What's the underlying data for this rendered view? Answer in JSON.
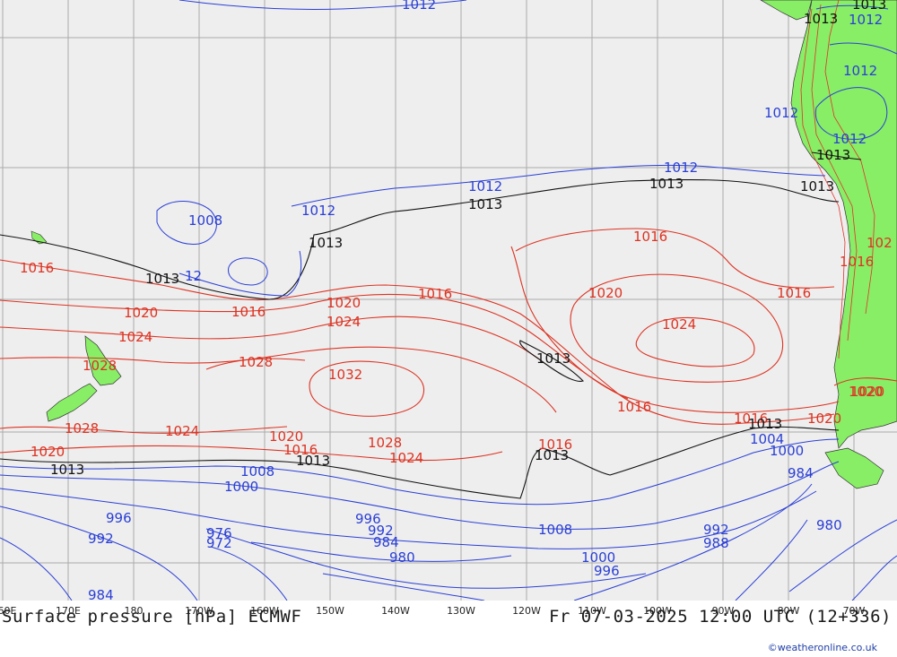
{
  "map": {
    "title_left": "Surface pressure [hPa] ECMWF",
    "title_right": "Fr 07-03-2025 12:00 UTC (12+336)",
    "credit": "©weatheronline.co.uk",
    "colors": {
      "ocean": "#eeeeee",
      "land": "#88ee66",
      "grid": "#aaaaaa",
      "isobar_high": "#dd3322",
      "isobar_low": "#2a3fd6",
      "isobar_1013": "#111111"
    },
    "longitude_labels": [
      "60E",
      "170E",
      "180",
      "170W",
      "160W",
      "150W",
      "140W",
      "130W",
      "120W",
      "110W",
      "100W",
      "90W",
      "80W",
      "70W"
    ],
    "isobar_labels": [
      {
        "text": "1012",
        "type": "low"
      },
      {
        "text": "1012",
        "type": "low"
      },
      {
        "text": "1013",
        "type": "mid"
      },
      {
        "text": "1012",
        "type": "low"
      },
      {
        "text": "1012",
        "type": "low"
      },
      {
        "text": "1013",
        "type": "mid"
      },
      {
        "text": "1012",
        "type": "low"
      },
      {
        "text": "1013",
        "type": "mid"
      },
      {
        "text": "1012",
        "type": "low"
      },
      {
        "text": "1013",
        "type": "mid"
      },
      {
        "text": "1012",
        "type": "low"
      },
      {
        "text": "1013",
        "type": "mid"
      },
      {
        "text": "1008",
        "type": "low"
      },
      {
        "text": "1012",
        "type": "low"
      },
      {
        "text": "1013",
        "type": "mid"
      },
      {
        "text": "1016",
        "type": "high"
      },
      {
        "text": "1013",
        "type": "mid"
      },
      {
        "text": "12",
        "type": "low"
      },
      {
        "text": "1016",
        "type": "high"
      },
      {
        "text": "1020",
        "type": "high"
      },
      {
        "text": "1016",
        "type": "high"
      },
      {
        "text": "1020",
        "type": "high"
      },
      {
        "text": "1024",
        "type": "high"
      },
      {
        "text": "1016",
        "type": "high"
      },
      {
        "text": "1024",
        "type": "high"
      },
      {
        "text": "1028",
        "type": "high"
      },
      {
        "text": "1028",
        "type": "high"
      },
      {
        "text": "1032",
        "type": "high"
      },
      {
        "text": "1013",
        "type": "mid"
      },
      {
        "text": "1016",
        "type": "high"
      },
      {
        "text": "1016",
        "type": "high"
      },
      {
        "text": "1020",
        "type": "high"
      },
      {
        "text": "1024",
        "type": "high"
      },
      {
        "text": "1016",
        "type": "high"
      },
      {
        "text": "1028",
        "type": "high"
      },
      {
        "text": "1024",
        "type": "high"
      },
      {
        "text": "1020",
        "type": "high"
      },
      {
        "text": "1016",
        "type": "high"
      },
      {
        "text": "1028",
        "type": "high"
      },
      {
        "text": "1024",
        "type": "high"
      },
      {
        "text": "1020",
        "type": "high"
      },
      {
        "text": "1013",
        "type": "mid"
      },
      {
        "text": "1013",
        "type": "mid"
      },
      {
        "text": "1016",
        "type": "high"
      },
      {
        "text": "1013",
        "type": "mid"
      },
      {
        "text": "1016",
        "type": "high"
      },
      {
        "text": "1020",
        "type": "high"
      },
      {
        "text": "1013",
        "type": "mid"
      },
      {
        "text": "1008",
        "type": "low"
      },
      {
        "text": "1000",
        "type": "low"
      },
      {
        "text": "996",
        "type": "low"
      },
      {
        "text": "992",
        "type": "low"
      },
      {
        "text": "976",
        "type": "low"
      },
      {
        "text": "972",
        "type": "low"
      },
      {
        "text": "996",
        "type": "low"
      },
      {
        "text": "992",
        "type": "low"
      },
      {
        "text": "984",
        "type": "low"
      },
      {
        "text": "980",
        "type": "low"
      },
      {
        "text": "1008",
        "type": "low"
      },
      {
        "text": "1000",
        "type": "low"
      },
      {
        "text": "996",
        "type": "low"
      },
      {
        "text": "992",
        "type": "low"
      },
      {
        "text": "988",
        "type": "low"
      },
      {
        "text": "1004",
        "type": "low"
      },
      {
        "text": "1000",
        "type": "low"
      },
      {
        "text": "984",
        "type": "low"
      },
      {
        "text": "980",
        "type": "low"
      },
      {
        "text": "984",
        "type": "low"
      },
      {
        "text": "1020",
        "type": "high"
      },
      {
        "text": "102",
        "type": "high"
      },
      {
        "text": "1020",
        "type": "high"
      },
      {
        "text": "1013",
        "type": "mid"
      }
    ]
  }
}
